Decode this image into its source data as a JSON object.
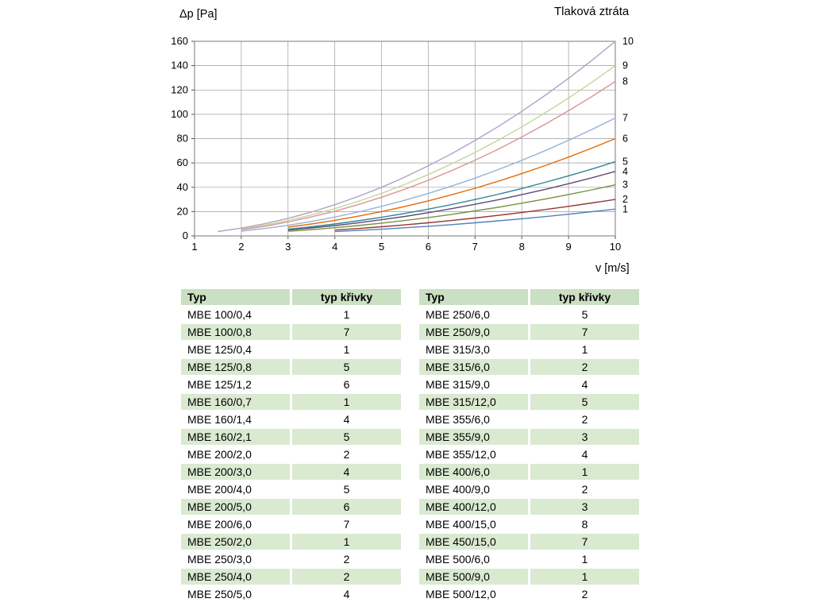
{
  "colors": {
    "table_header_bg": "#cbdfc3",
    "table_stripe_bg": "#d9ead1",
    "grid_line": "#9c9c9c"
  },
  "chart_data": {
    "type": "line",
    "title": "Tlaková ztráta",
    "ylabel": "Δp [Pa]",
    "xlabel": "v [m/s]",
    "xlim": [
      1,
      10
    ],
    "ylim": [
      0,
      160
    ],
    "x_ticks": [
      1,
      2,
      3,
      4,
      5,
      6,
      7,
      8,
      9,
      10
    ],
    "y_ticks": [
      0,
      20,
      40,
      60,
      80,
      100,
      120,
      140,
      160
    ],
    "grid": true,
    "legend_position": "labels-at-right-curve-ends",
    "series": [
      {
        "name": "10",
        "color": "#B2A1C7",
        "x": [
          1.5,
          2,
          2.5,
          3,
          3.5,
          4,
          4.5,
          5,
          5.5,
          6,
          6.5,
          7,
          7.5,
          8,
          8.5,
          9,
          9.5,
          10
        ],
        "values": [
          3.6,
          6.4,
          10,
          14.4,
          19.6,
          25.6,
          32.4,
          40,
          48.4,
          57.6,
          67.6,
          78.4,
          90,
          102.4,
          115.6,
          129.6,
          144.4,
          160
        ]
      },
      {
        "name": "9",
        "color": "#C3D69B",
        "x": [
          2,
          2.5,
          3,
          3.5,
          4,
          4.5,
          5,
          5.5,
          6,
          6.5,
          7,
          7.5,
          8,
          8.5,
          9,
          9.5,
          10
        ],
        "values": [
          5.6,
          8.8,
          12.6,
          17.2,
          22.4,
          28.4,
          35,
          42.4,
          50.4,
          59.2,
          68.6,
          78.8,
          89.6,
          101.2,
          113.4,
          126.4,
          140
        ]
      },
      {
        "name": "8",
        "color": "#D99694",
        "x": [
          2,
          2.5,
          3,
          3.5,
          4,
          4.5,
          5,
          5.5,
          6,
          6.5,
          7,
          7.5,
          8,
          8.5,
          9,
          9.5,
          10
        ],
        "values": [
          5.1,
          7.9,
          11.4,
          15.6,
          20.3,
          25.7,
          31.8,
          38.4,
          45.7,
          53.7,
          62.2,
          71.4,
          81.3,
          91.8,
          102.9,
          114.6,
          127
        ]
      },
      {
        "name": "7",
        "color": "#95B3D7",
        "x": [
          2,
          2.5,
          3,
          3.5,
          4,
          4.5,
          5,
          5.5,
          6,
          6.5,
          7,
          7.5,
          8,
          8.5,
          9,
          9.5,
          10
        ],
        "values": [
          3.9,
          6.1,
          8.7,
          11.9,
          15.5,
          19.6,
          24.3,
          29.3,
          34.9,
          41,
          47.5,
          54.6,
          62.1,
          70.1,
          78.6,
          87.5,
          97
        ]
      },
      {
        "name": "6",
        "color": "#E36C09",
        "x": [
          3,
          3.5,
          4,
          4.5,
          5,
          5.5,
          6,
          6.5,
          7,
          7.5,
          8,
          8.5,
          9,
          9.5,
          10
        ],
        "values": [
          7.2,
          9.8,
          12.8,
          16.2,
          20,
          24.2,
          28.8,
          33.8,
          39.2,
          45,
          51.2,
          57.8,
          64.8,
          72.2,
          80
        ]
      },
      {
        "name": "5",
        "color": "#31849B",
        "x": [
          3,
          3.5,
          4,
          4.5,
          5,
          5.5,
          6,
          6.5,
          7,
          7.5,
          8,
          8.5,
          9,
          9.5,
          10
        ],
        "values": [
          5.5,
          7.5,
          9.8,
          12.4,
          15.3,
          18.5,
          22,
          25.8,
          29.9,
          34.3,
          39,
          44.1,
          49.4,
          55,
          61
        ]
      },
      {
        "name": "4",
        "color": "#5F497A",
        "x": [
          3,
          3.5,
          4,
          4.5,
          5,
          5.5,
          6,
          6.5,
          7,
          7.5,
          8,
          8.5,
          9,
          9.5,
          10
        ],
        "values": [
          4.8,
          6.5,
          8.5,
          10.7,
          13.3,
          16,
          19.1,
          22.4,
          26,
          29.8,
          33.9,
          38.3,
          42.9,
          47.8,
          53
        ]
      },
      {
        "name": "3",
        "color": "#76923C",
        "x": [
          3,
          3.5,
          4,
          4.5,
          5,
          5.5,
          6,
          6.5,
          7,
          7.5,
          8,
          8.5,
          9,
          9.5,
          10
        ],
        "values": [
          3.8,
          5.1,
          6.7,
          8.5,
          10.5,
          12.7,
          15.1,
          17.7,
          20.6,
          23.6,
          26.9,
          30.3,
          34,
          37.9,
          42
        ]
      },
      {
        "name": "2",
        "color": "#953735",
        "x": [
          4,
          4.5,
          5,
          5.5,
          6,
          6.5,
          7,
          7.5,
          8,
          8.5,
          9,
          9.5,
          10
        ],
        "values": [
          4.8,
          6.1,
          7.5,
          9.1,
          10.8,
          12.7,
          14.7,
          16.9,
          19.2,
          21.7,
          24.3,
          27.1,
          30
        ]
      },
      {
        "name": "1",
        "color": "#4F81BD",
        "x": [
          4,
          4.5,
          5,
          5.5,
          6,
          6.5,
          7,
          7.5,
          8,
          8.5,
          9,
          9.5,
          10
        ],
        "values": [
          3.5,
          4.5,
          5.5,
          6.7,
          7.9,
          9.3,
          10.8,
          12.4,
          14.1,
          15.9,
          17.8,
          19.9,
          22
        ]
      }
    ]
  },
  "tables": [
    {
      "headers": [
        "Typ",
        "typ křivky"
      ],
      "rows": [
        [
          "MBE 100/0,4",
          "1"
        ],
        [
          "MBE 100/0,8",
          "7"
        ],
        [
          "MBE 125/0,4",
          "1"
        ],
        [
          "MBE 125/0,8",
          "5"
        ],
        [
          "MBE 125/1,2",
          "6"
        ],
        [
          "MBE 160/0,7",
          "1"
        ],
        [
          "MBE 160/1,4",
          "4"
        ],
        [
          "MBE 160/2,1",
          "5"
        ],
        [
          "MBE 200/2,0",
          "2"
        ],
        [
          "MBE 200/3,0",
          "4"
        ],
        [
          "MBE 200/4,0",
          "5"
        ],
        [
          "MBE 200/5,0",
          "6"
        ],
        [
          "MBE 200/6,0",
          "7"
        ],
        [
          "MBE 250/2,0",
          "1"
        ],
        [
          "MBE 250/3,0",
          "2"
        ],
        [
          "MBE 250/4,0",
          "2"
        ],
        [
          "MBE 250/5,0",
          "4"
        ]
      ]
    },
    {
      "headers": [
        "Typ",
        "typ křivky"
      ],
      "rows": [
        [
          "MBE 250/6,0",
          "5"
        ],
        [
          "MBE 250/9,0",
          "7"
        ],
        [
          "MBE 315/3,0",
          "1"
        ],
        [
          "MBE 315/6,0",
          "2"
        ],
        [
          "MBE 315/9,0",
          "4"
        ],
        [
          "MBE 315/12,0",
          "5"
        ],
        [
          "MBE 355/6,0",
          "2"
        ],
        [
          "MBE 355/9,0",
          "3"
        ],
        [
          "MBE 355/12,0",
          "4"
        ],
        [
          "MBE 400/6,0",
          "1"
        ],
        [
          "MBE 400/9,0",
          "2"
        ],
        [
          "MBE 400/12,0",
          "3"
        ],
        [
          "MBE 400/15,0",
          "8"
        ],
        [
          "MBE 450/15,0",
          "7"
        ],
        [
          "MBE 500/6,0",
          "1"
        ],
        [
          "MBE 500/9,0",
          "1"
        ],
        [
          "MBE 500/12,0",
          "2"
        ]
      ]
    }
  ]
}
